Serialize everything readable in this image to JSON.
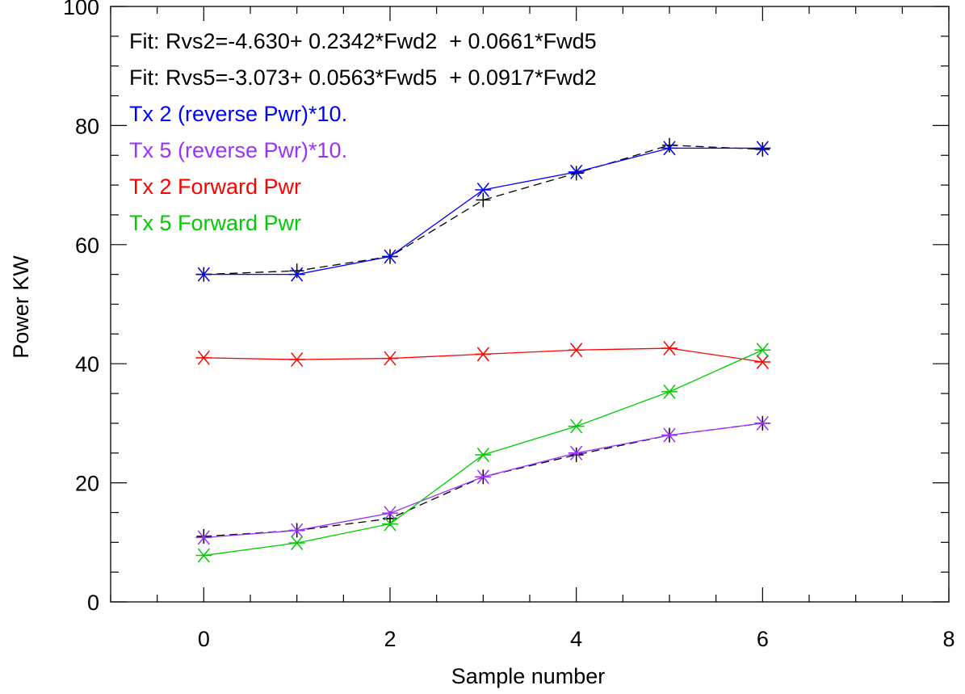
{
  "chart_data": {
    "type": "line",
    "xlabel": "Sample number",
    "ylabel": "Power KW",
    "xlim": [
      -1,
      8
    ],
    "ylim": [
      0,
      100
    ],
    "x_ticks": [
      0,
      2,
      4,
      6,
      8
    ],
    "y_ticks": [
      0,
      20,
      40,
      60,
      80,
      100
    ],
    "x_minor_step": 0.5,
    "y_minor_step": 5,
    "grid": false,
    "x": [
      0,
      1,
      2,
      3,
      4,
      5,
      6
    ],
    "annotations": [
      {
        "text": "Fit: Rvs2=-4.630+ 0.2342*Fwd2  + 0.0661*Fwd5",
        "color": "#000000"
      },
      {
        "text": "Fit: Rvs5=-3.073+ 0.0563*Fwd5  + 0.0917*Fwd2",
        "color": "#000000"
      }
    ],
    "legend_position": "top-left",
    "series": [
      {
        "name": "Tx 2 (reverse Pwr)*10.",
        "color": "#0000ff",
        "style": "solid",
        "marker": "asterisk",
        "in_legend": true,
        "values": [
          55.0,
          55.0,
          58.0,
          69.2,
          72.2,
          76.2,
          76.2
        ]
      },
      {
        "name": "Tx 5 (reverse Pwr)*10.",
        "color": "#9b30ff",
        "style": "solid",
        "marker": "asterisk",
        "in_legend": true,
        "values": [
          10.8,
          12.0,
          14.9,
          21.0,
          25.0,
          28.0,
          30.0
        ]
      },
      {
        "name": "Tx 2 Forward Pwr",
        "color": "#ff0000",
        "style": "solid",
        "marker": "asterisk",
        "in_legend": true,
        "values": [
          41.0,
          40.7,
          40.9,
          41.6,
          42.3,
          42.6,
          40.3
        ]
      },
      {
        "name": "Tx 5 Forward Pwr",
        "color": "#00cc00",
        "style": "solid",
        "marker": "asterisk",
        "in_legend": true,
        "values": [
          7.8,
          9.9,
          13.1,
          24.7,
          29.5,
          35.3,
          42.3
        ]
      },
      {
        "name": "",
        "color": "#000000",
        "style": "dashed",
        "marker": "plus",
        "in_legend": false,
        "values": [
          55.0,
          55.6,
          58.0,
          67.5,
          72.0,
          76.7,
          76.0
        ]
      },
      {
        "name": "",
        "color": "#000000",
        "style": "dashed",
        "marker": "plus",
        "in_legend": false,
        "values": [
          11.0,
          12.0,
          14.0,
          21.0,
          24.7,
          28.0,
          30.0
        ]
      }
    ]
  }
}
